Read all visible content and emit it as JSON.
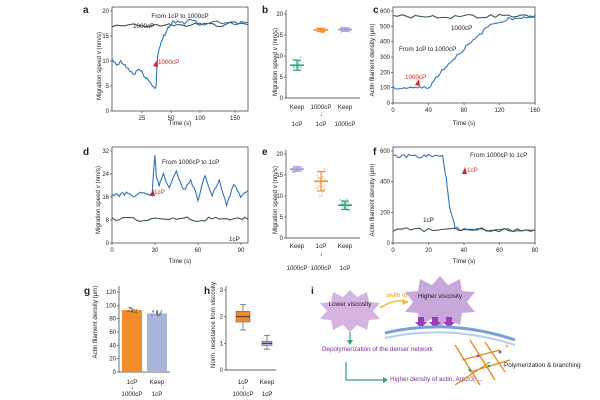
{
  "panels": {
    "a": {
      "letter": "a",
      "title": "From 1cP to 1000cP",
      "ylabel": "Migration speed v (nm/s)",
      "xlabel": "Time (s)",
      "yticks": [
        "0",
        "5",
        "10",
        "15",
        "20"
      ],
      "xticks": [
        "25",
        "50",
        "100",
        "150"
      ],
      "series_label_top": "1000cP",
      "marker_label": "1000cP"
    },
    "b": {
      "letter": "b",
      "ylabel": "Migration speed v (nm/s)",
      "yticks": [
        "0",
        "5",
        "10",
        "15",
        "20"
      ],
      "cat1_line1": "Keep",
      "cat1_line2": "1cP",
      "cat2_line1": "1000cP",
      "cat2_line2": "1cP",
      "cat3_line1": "Keep",
      "cat3_line2": "1000cP"
    },
    "c": {
      "letter": "c",
      "ylabel": "Actin filament density (μm)",
      "xlabel": "Time (s)",
      "yticks": [
        "0",
        "100",
        "200",
        "300",
        "400",
        "500",
        "600"
      ],
      "xticks": [
        "0",
        "40",
        "80",
        "120",
        "160"
      ],
      "title": "From 1cP to 1000cP",
      "series_label_top": "1000cP",
      "marker_label": "1000cP"
    },
    "d": {
      "letter": "d",
      "title": "From 1000cP to 1cP",
      "ylabel": "Migration speed v (nm/s)",
      "xlabel": "Time (s)",
      "yticks": [
        "0",
        "8",
        "16",
        "24",
        "32"
      ],
      "xticks": [
        "0",
        "30",
        "60",
        "90"
      ],
      "marker_label": "1cP",
      "series_label_bottom": "1cP"
    },
    "e": {
      "letter": "e",
      "ylabel": "Migration speed v (nm/s)",
      "yticks": [
        "0",
        "5",
        "10",
        "15",
        "20"
      ],
      "cat1_line1": "Keep",
      "cat1_line2": "1000cP",
      "cat2_line1": "1cP",
      "cat2_line2": "1000cP",
      "cat3_line1": "Keep",
      "cat3_line2": "1cP"
    },
    "f": {
      "letter": "f",
      "ylabel": "Actin filament density (μm)",
      "xlabel": "Time (s)",
      "yticks": [
        "0",
        "200",
        "400",
        "600"
      ],
      "xticks": [
        "0",
        "20",
        "40",
        "60",
        "80"
      ],
      "title": "From 1000cP to 1cP",
      "marker_label": "1cP",
      "series_label_bottom": "1cP"
    },
    "g": {
      "letter": "g",
      "ylabel": "Actin filament density (μm)",
      "yticks": [
        "0",
        "20",
        "40",
        "60",
        "80",
        "100",
        "120"
      ],
      "cat1_line1": "1cP",
      "cat1_line2": "1000cP",
      "cat2_line1": "Keep",
      "cat2_line2": "1cP"
    },
    "h": {
      "letter": "h",
      "ylabel": "Norm. resistance from viscosity",
      "yticks": [
        "0",
        "1",
        "2",
        "3"
      ],
      "cat1_line1": "1cP",
      "cat1_line2": "1000cP",
      "cat2_line1": "Keep",
      "cat2_line2": "1cP"
    },
    "i": {
      "letter": "i",
      "lower": "Lower viscosity",
      "higher": "Higher viscosity",
      "switch": "swith to",
      "depoly": "Depolymerization of the denser network",
      "density": "Higher density of actin, Arp2/3, ...",
      "poly": "Polymerization & branching"
    }
  },
  "colors": {
    "blue": "#2f75b5",
    "gray": "#7e7e7e",
    "darkgreen": "#3d5a45",
    "green": "#2ea37a",
    "orange": "#f28c28",
    "purple": "#9a9ad8",
    "red": "#d9252a",
    "pinkpurple": "#c79bd8",
    "arrowpurple": "#9b3bb8",
    "bargray": "#aab4d8"
  },
  "chart_data": [
    {
      "type": "line",
      "id": "a",
      "title": "From 1cP to 1000cP",
      "xlabel": "Time (s)",
      "ylabel": "Migration speed v (nm/s)",
      "xlim": [
        0,
        155
      ],
      "ylim": [
        0,
        20
      ],
      "series": [
        {
          "name": "1000cP",
          "x": [
            0,
            20,
            40,
            60,
            80,
            100,
            120,
            140,
            155
          ],
          "values": [
            16.3,
            16.8,
            16.2,
            16.6,
            16.4,
            16.7,
            16.5,
            16.9,
            16.6
          ]
        },
        {
          "name": "switch",
          "x": [
            0,
            5,
            10,
            15,
            20,
            25,
            30,
            35,
            40,
            45,
            50,
            52,
            55,
            58,
            62,
            66,
            70,
            80,
            90,
            100,
            120,
            140,
            155
          ],
          "values": [
            9.8,
            8.8,
            9.4,
            8.7,
            7.8,
            7.0,
            8.1,
            7.2,
            6.2,
            5.1,
            4.3,
            10.8,
            12.5,
            14.0,
            15.5,
            16.5,
            17.2,
            16.9,
            17.4,
            16.8,
            17.1,
            16.9,
            17.0
          ]
        }
      ]
    },
    {
      "type": "scatter",
      "id": "b",
      "ylabel": "Migration speed v (nm/s)",
      "ylim": [
        0,
        20
      ],
      "categories": [
        "Keep 1cP",
        "1000cP 1cP",
        "Keep 1000cP"
      ],
      "means": [
        7.8,
        16.2,
        16.3
      ],
      "errors": [
        1.2,
        0.4,
        0.4
      ]
    },
    {
      "type": "line",
      "id": "c",
      "title": "From 1cP to 1000cP",
      "xlabel": "Time (s)",
      "ylabel": "Actin filament density (μm)",
      "xlim": [
        0,
        160
      ],
      "ylim": [
        0,
        600
      ],
      "series": [
        {
          "name": "1000cP",
          "x": [
            0,
            20,
            40,
            60,
            80,
            100,
            120,
            140,
            160
          ],
          "values": [
            548,
            540,
            546,
            536,
            545,
            540,
            547,
            542,
            545
          ]
        },
        {
          "name": "switch",
          "x": [
            0,
            10,
            20,
            30,
            40,
            45,
            50,
            60,
            70,
            80,
            90,
            100,
            110,
            120,
            130,
            140,
            150,
            160
          ],
          "values": [
            95,
            92,
            98,
            93,
            97,
            130,
            170,
            230,
            285,
            340,
            385,
            440,
            490,
            512,
            525,
            532,
            538,
            540
          ]
        }
      ]
    },
    {
      "type": "line",
      "id": "d",
      "title": "From 1000cP to 1cP",
      "xlabel": "Time (s)",
      "ylabel": "Migration speed v (nm/s)",
      "xlim": [
        0,
        95
      ],
      "ylim": [
        0,
        32
      ],
      "series": [
        {
          "name": "switch",
          "x": [
            0,
            5,
            10,
            15,
            20,
            25,
            28,
            30,
            31,
            33,
            36,
            40,
            45,
            50,
            55,
            60,
            65,
            70,
            75,
            80,
            85,
            90,
            95
          ],
          "values": [
            16.2,
            16.0,
            16.5,
            15.9,
            16.4,
            16.1,
            16.3,
            29.5,
            22.0,
            19.0,
            23.0,
            18.0,
            24.0,
            17.5,
            21.0,
            14.5,
            22.5,
            16.0,
            20.5,
            13.0,
            19.5,
            15.0,
            17.5
          ]
        },
        {
          "name": "1cP",
          "x": [
            0,
            10,
            20,
            30,
            40,
            50,
            60,
            70,
            80,
            90,
            95
          ],
          "values": [
            7.9,
            8.6,
            7.4,
            8.3,
            7.6,
            8.8,
            7.3,
            8.5,
            7.7,
            8.2,
            7.9
          ]
        }
      ]
    },
    {
      "type": "scatter",
      "id": "e",
      "ylabel": "Migration speed v (nm/s)",
      "ylim": [
        0,
        20
      ],
      "categories": [
        "Keep 1000cP",
        "1cP 1000cP",
        "Keep 1cP"
      ],
      "means": [
        16.4,
        13.5,
        7.8
      ],
      "errors": [
        0.5,
        2.3,
        1.0
      ]
    },
    {
      "type": "line",
      "id": "f",
      "title": "From 1000cP to 1cP",
      "xlabel": "Time (s)",
      "ylabel": "Actin filament density (μm)",
      "xlim": [
        0,
        80
      ],
      "ylim": [
        0,
        600
      ],
      "series": [
        {
          "name": "switch",
          "x": [
            0,
            5,
            10,
            15,
            20,
            25,
            28,
            30,
            32,
            35,
            40,
            50,
            60,
            70,
            80
          ],
          "values": [
            545,
            540,
            548,
            538,
            546,
            542,
            540,
            400,
            210,
            100,
            82,
            80,
            83,
            79,
            81
          ]
        },
        {
          "name": "1cP",
          "x": [
            0,
            10,
            20,
            30,
            40,
            50,
            60,
            70,
            80
          ],
          "values": [
            82,
            86,
            80,
            84,
            81,
            85,
            80,
            83,
            82
          ]
        }
      ]
    },
    {
      "type": "bar",
      "id": "g",
      "ylabel": "Actin filament density (μm)",
      "ylim": [
        0,
        120
      ],
      "categories": [
        "1cP 1000cP",
        "Keep 1cP"
      ],
      "values": [
        93,
        88
      ],
      "errors": [
        3,
        3
      ]
    },
    {
      "type": "box",
      "id": "h",
      "ylabel": "Norm. resistance from viscosity",
      "ylim": [
        0,
        3
      ],
      "categories": [
        "1cP 1000cP",
        "Keep 1cP"
      ],
      "medians": [
        2.0,
        1.0
      ],
      "q1": [
        1.8,
        0.92
      ],
      "q3": [
        2.2,
        1.08
      ],
      "whisker_low": [
        1.5,
        0.78
      ],
      "whisker_high": [
        2.45,
        1.3
      ]
    }
  ]
}
